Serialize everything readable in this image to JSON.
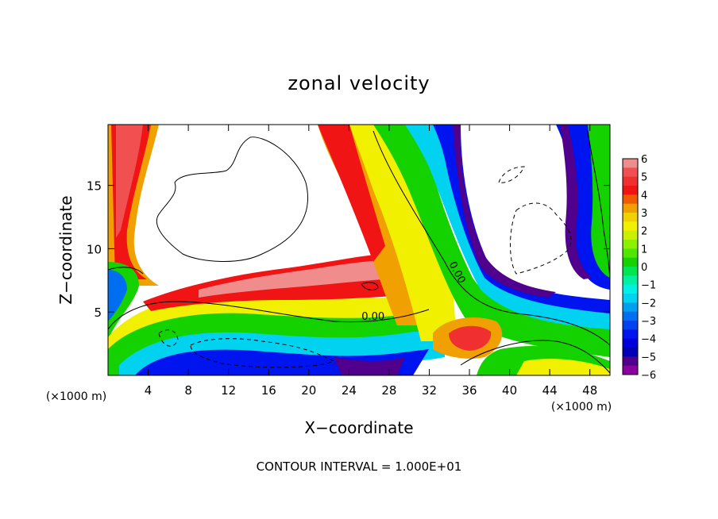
{
  "chart_data": {
    "type": "heatmap",
    "title": "zonal velocity",
    "xlabel": "X−coordinate",
    "ylabel": "Z−coordinate",
    "x_unit_left": "(×1000 m)",
    "x_unit_right": "(×1000 m)",
    "footer": "CONTOUR INTERVAL = 1.000E+01",
    "xlim": [
      0,
      50
    ],
    "ylim": [
      0,
      19.8
    ],
    "x_ticks": [
      4,
      8,
      12,
      16,
      20,
      24,
      28,
      32,
      36,
      40,
      44,
      48
    ],
    "x_tick_labels": [
      "4",
      "8",
      "12",
      "16",
      "20",
      "24",
      "28",
      "32",
      "36",
      "40",
      "44",
      "48"
    ],
    "y_ticks": [
      5,
      10,
      15
    ],
    "y_tick_labels": [
      "5",
      "10",
      "15"
    ],
    "contour_labels": [
      {
        "text": "0.00",
        "x": 26.4,
        "y": 4.4
      },
      {
        "text": "0.00",
        "x": 34.5,
        "y": 8.0
      }
    ],
    "colorbar": {
      "min": -6,
      "max": 6,
      "labels": [
        "6",
        "5",
        "4",
        "3",
        "2",
        "1",
        "0",
        "−1",
        "−2",
        "−3",
        "−4",
        "−5",
        "−6"
      ],
      "label_values": [
        6,
        5,
        4,
        3,
        2,
        1,
        0,
        -1,
        -2,
        -3,
        -4,
        -5,
        -6
      ],
      "bands": [
        {
          "value": 5.75,
          "color": "#f08c8c"
        },
        {
          "value": 5.25,
          "color": "#f05050"
        },
        {
          "value": 4.75,
          "color": "#f03030"
        },
        {
          "value": 4.25,
          "color": "#f01414"
        },
        {
          "value": 3.75,
          "color": "#f05a00"
        },
        {
          "value": 3.25,
          "color": "#f0a000"
        },
        {
          "value": 2.75,
          "color": "#f0d200"
        },
        {
          "value": 2.25,
          "color": "#f0f000"
        },
        {
          "value": 1.75,
          "color": "#c8f000"
        },
        {
          "value": 1.25,
          "color": "#8cf000"
        },
        {
          "value": 0.75,
          "color": "#50e600"
        },
        {
          "value": 0.25,
          "color": "#14d200"
        },
        {
          "value": -0.25,
          "color": "#00e650"
        },
        {
          "value": -0.75,
          "color": "#00f0a0"
        },
        {
          "value": -1.25,
          "color": "#00f0e6"
        },
        {
          "value": -1.75,
          "color": "#00d2f0"
        },
        {
          "value": -2.25,
          "color": "#00a0f0"
        },
        {
          "value": -2.75,
          "color": "#006ef0"
        },
        {
          "value": -3.25,
          "color": "#0041f0"
        },
        {
          "value": -3.75,
          "color": "#0014f0"
        },
        {
          "value": -4.25,
          "color": "#0000dc"
        },
        {
          "value": -4.75,
          "color": "#0000b4"
        },
        {
          "value": -5.25,
          "color": "#50008c"
        },
        {
          "value": -5.75,
          "color": "#8c00a0"
        }
      ]
    }
  }
}
